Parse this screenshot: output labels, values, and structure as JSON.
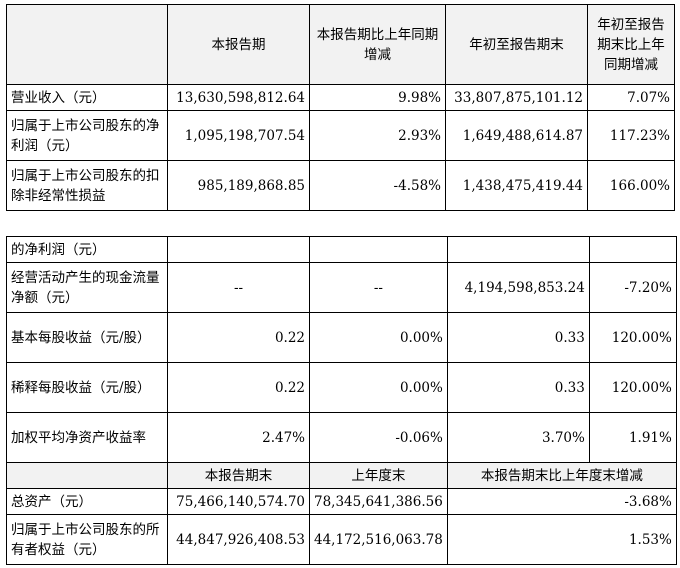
{
  "header": {
    "c1": "本报告期",
    "c2": "本报告期比上年同期增减",
    "c3": "年初至报告期末",
    "c4": "年初至报告期末比上年同期增减"
  },
  "rows_top": [
    {
      "label": "营业收入（元）",
      "v1": "13,630,598,812.64",
      "v2": "9.98%",
      "v3": "33,807,875,101.12",
      "v4": "7.07%"
    },
    {
      "label": "归属于上市公司股东的净利润（元）",
      "v1": "1,095,198,707.54",
      "v2": "2.93%",
      "v3": "1,649,488,614.87",
      "v4": "117.23%"
    },
    {
      "label": "归属于上市公司股东的扣除非经常性损益",
      "v1": "985,189,868.85",
      "v2": "-4.58%",
      "v3": "1,438,475,419.44",
      "v4": "166.00%"
    }
  ],
  "rows_bottom": [
    {
      "label": "的净利润（元）",
      "v1": "",
      "v2": "",
      "v3": "",
      "v4": ""
    },
    {
      "label": "经营活动产生的现金流量净额（元）",
      "v1": "--",
      "v2": "--",
      "v3": "4,194,598,853.24",
      "v4": "-7.20%"
    },
    {
      "label": "基本每股收益（元/股）",
      "v1": "0.22",
      "v2": "0.00%",
      "v3": "0.33",
      "v4": "120.00%"
    },
    {
      "label": "稀释每股收益（元/股）",
      "v1": "0.22",
      "v2": "0.00%",
      "v3": "0.33",
      "v4": "120.00%"
    },
    {
      "label": "加权平均净资产收益率",
      "v1": "2.47%",
      "v2": "-0.06%",
      "v3": "3.70%",
      "v4": "1.91%"
    }
  ],
  "header2": {
    "c1": "本报告期末",
    "c2": "上年度末",
    "c3": "本报告期末比上年度末增减"
  },
  "rows_assets": [
    {
      "label": "总资产（元）",
      "v1": "75,466,140,574.70",
      "v2": "78,345,641,386.56",
      "v3": "-3.68%"
    },
    {
      "label": "归属于上市公司股东的所有者权益（元）",
      "v1": "44,847,926,408.53",
      "v2": "44,172,516,063.78",
      "v3": "1.53%"
    }
  ]
}
